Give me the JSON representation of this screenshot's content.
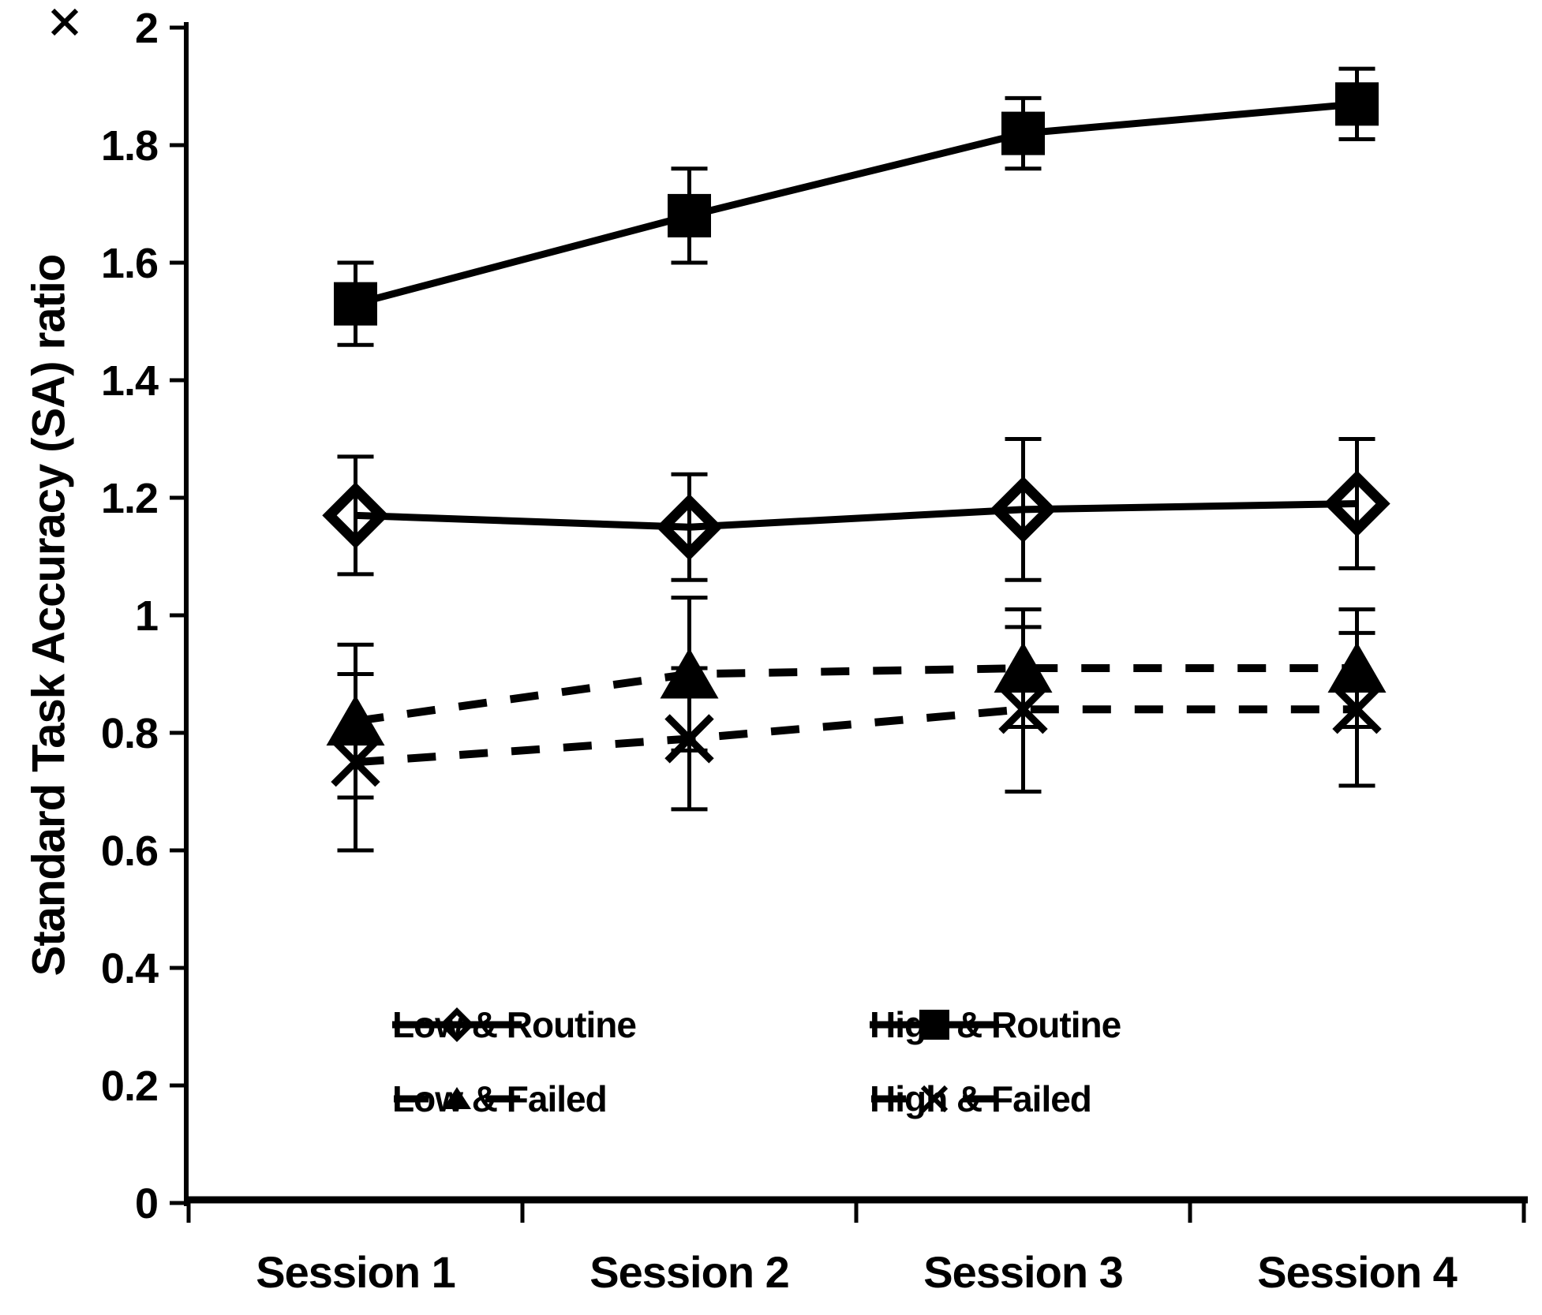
{
  "chart_data": {
    "type": "line",
    "title": "",
    "xlabel": "",
    "ylabel": "Standard Task Accuracy (SA) ratio",
    "categories": [
      "Session 1",
      "Session 2",
      "Session 3",
      "Session 4"
    ],
    "ylim": [
      0,
      2
    ],
    "ytick_step": 0.2,
    "ytick_labels": [
      "0",
      "0.2",
      "0.4",
      "0.6",
      "0.8",
      "1",
      "1.2",
      "1.4",
      "1.6",
      "1.8",
      "2"
    ],
    "grid": false,
    "legend_position": "inside-bottom",
    "axis_color": "#000000",
    "series": [
      {
        "name": "Low & Routine",
        "line": "solid",
        "marker": "open-diamond",
        "values": [
          1.17,
          1.15,
          1.18,
          1.19
        ],
        "errors": [
          0.1,
          0.09,
          0.12,
          0.11
        ]
      },
      {
        "name": "High & Routine",
        "line": "solid",
        "marker": "filled-square",
        "values": [
          1.53,
          1.68,
          1.82,
          1.87
        ],
        "errors": [
          0.07,
          0.08,
          0.06,
          0.06
        ]
      },
      {
        "name": "Low & Failed",
        "line": "dashed",
        "marker": "filled-triangle",
        "values": [
          0.82,
          0.9,
          0.91,
          0.91
        ],
        "errors": [
          0.13,
          0.13,
          0.1,
          0.1
        ]
      },
      {
        "name": "High & Failed",
        "line": "dashed",
        "marker": "x",
        "values": [
          0.75,
          0.79,
          0.84,
          0.84
        ],
        "errors": [
          0.15,
          0.12,
          0.14,
          0.13
        ]
      }
    ]
  }
}
